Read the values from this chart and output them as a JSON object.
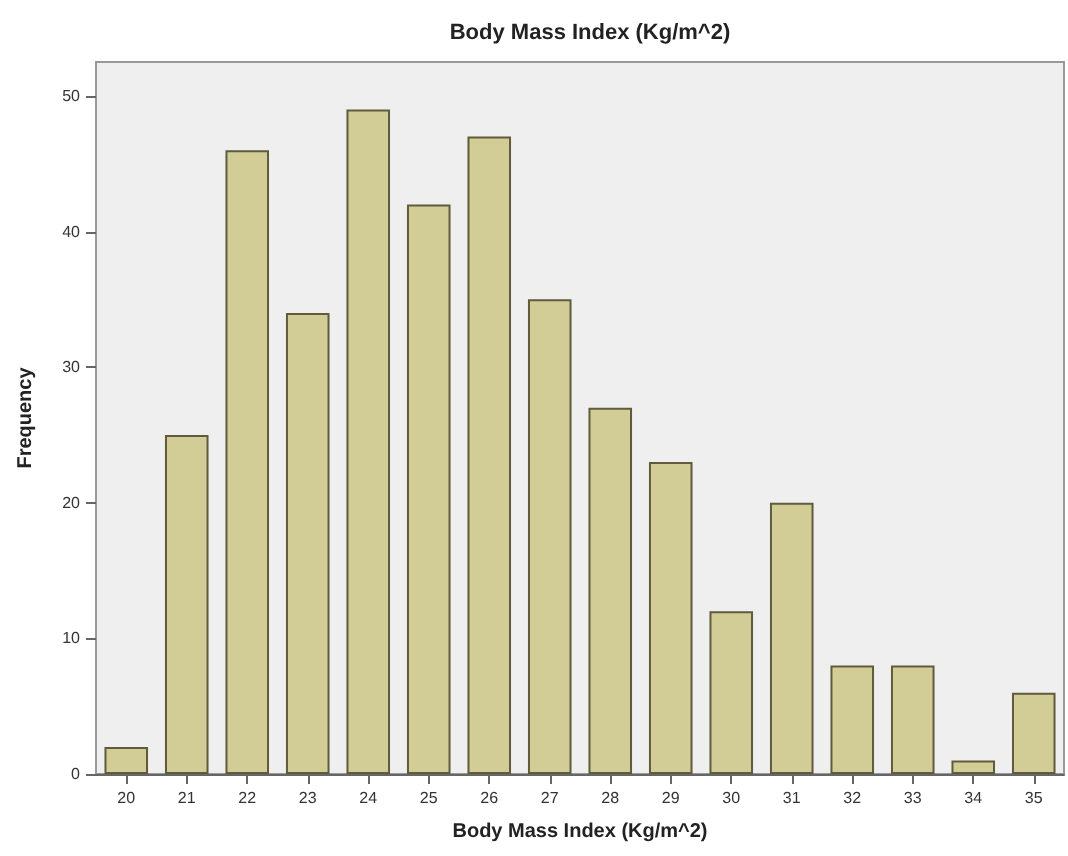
{
  "chart_data": {
    "type": "bar",
    "title": "Body Mass Index (Kg/m^2)",
    "xlabel": "Body Mass Index (Kg/m^2)",
    "ylabel": "Frequency",
    "categories": [
      "20",
      "21",
      "22",
      "23",
      "24",
      "25",
      "26",
      "27",
      "28",
      "29",
      "30",
      "31",
      "32",
      "33",
      "34",
      "35"
    ],
    "values": [
      2,
      25,
      46,
      34,
      49,
      42,
      47,
      35,
      27,
      23,
      12,
      20,
      8,
      8,
      1,
      6
    ],
    "color": "#d2cc96",
    "ylim": [
      0,
      52.5
    ],
    "yticks": [
      0,
      10,
      20,
      30,
      40,
      50
    ]
  }
}
